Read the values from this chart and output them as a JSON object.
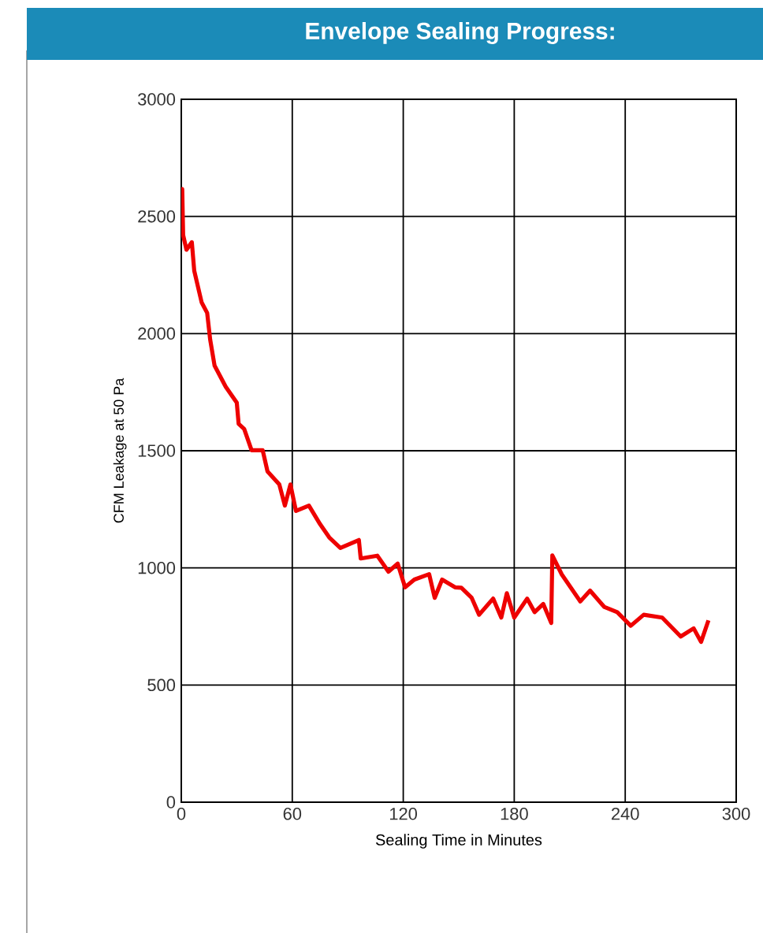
{
  "chart_data": {
    "type": "line",
    "title": "Envelope Sealing Progress:",
    "xlabel": "Sealing Time in Minutes",
    "ylabel": "CFM Leakage at 50 Pa",
    "xlim": [
      0,
      300
    ],
    "xticks": [
      0,
      60,
      120,
      180,
      240,
      300
    ],
    "ylim": [
      0,
      3000
    ],
    "yticks": [
      0,
      500,
      1000,
      1500,
      2000,
      2500,
      3000
    ],
    "grid": true,
    "marker": "none",
    "line_style": "solid",
    "series": [
      {
        "color": "#ee0000",
        "x": [
          0,
          0.5,
          1,
          2.8,
          5.7,
          7,
          11,
          14,
          15.6,
          18,
          24,
          30,
          31,
          34,
          38,
          44,
          46.6,
          53,
          56,
          59,
          62,
          69,
          75,
          80,
          86,
          96,
          97,
          106,
          112,
          117,
          121,
          126,
          134,
          137,
          141,
          148,
          151.4,
          157,
          161,
          168.6,
          173,
          176,
          180,
          187,
          191,
          195.7,
          200,
          200.6,
          205.7,
          215.7,
          221,
          228.6,
          235.7,
          243,
          250,
          260,
          270,
          277,
          281,
          285
        ],
        "values": [
          2437,
          2617,
          2420,
          2358,
          2390,
          2268,
          2133,
          2088,
          1975,
          1863,
          1773,
          1705,
          1615,
          1593,
          1502,
          1502,
          1412,
          1356,
          1266,
          1356,
          1243,
          1266,
          1187,
          1130,
          1085,
          1119,
          1040,
          1052,
          984,
          1018,
          917,
          950,
          973,
          872,
          950,
          917,
          915,
          872,
          800,
          869,
          788,
          892,
          788,
          869,
          811,
          846,
          765,
          1053,
          972,
          857,
          903,
          834,
          811,
          753,
          800,
          788,
          707,
          742,
          684,
          776
        ]
      }
    ]
  }
}
